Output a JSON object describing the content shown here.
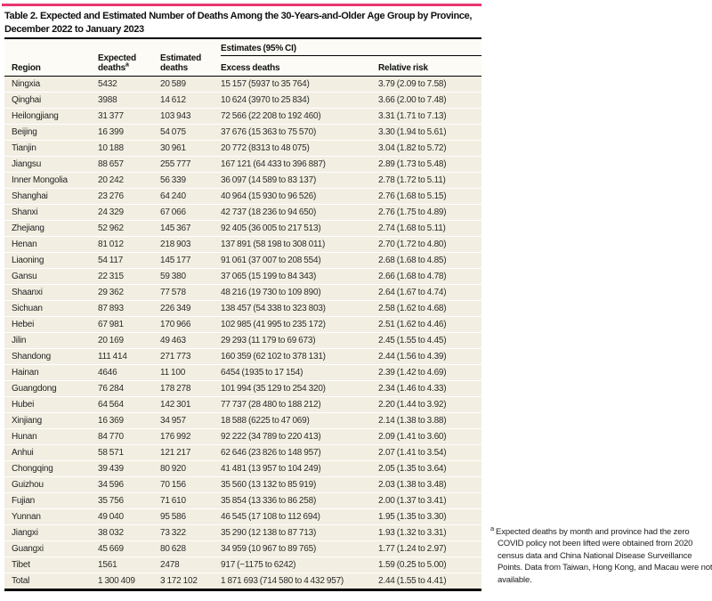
{
  "accent_color": "#e8366e",
  "title": "Table 2. Expected and Estimated Number of Deaths Among the 30-Years-and-Older Age Group by Province, December 2022 to January 2023",
  "table": {
    "spanner": "Estimates (95% CI)",
    "columns": {
      "region": "Region",
      "expected_line1": "Expected",
      "expected_line2": "deaths",
      "expected_sup": "a",
      "estimated_line1": "Estimated",
      "estimated_line2": "deaths",
      "excess": "Excess deaths",
      "relative": "Relative risk"
    },
    "rows": [
      [
        "Ningxia",
        "5432",
        "20 589",
        "15 157 (5937 to 35 764)",
        "3.79 (2.09 to 7.58)"
      ],
      [
        "Qinghai",
        "3988",
        "14 612",
        "10 624 (3970 to 25 834)",
        "3.66 (2.00 to 7.48)"
      ],
      [
        "Heilongjiang",
        "31 377",
        "103 943",
        "72 566 (22 208 to 192 460)",
        "3.31 (1.71 to 7.13)"
      ],
      [
        "Beijing",
        "16 399",
        "54 075",
        "37 676 (15 363 to 75 570)",
        "3.30 (1.94 to 5.61)"
      ],
      [
        "Tianjin",
        "10 188",
        "30 961",
        "20 772 (8313 to 48 075)",
        "3.04 (1.82 to 5.72)"
      ],
      [
        "Jiangsu",
        "88 657",
        "255 777",
        "167 121 (64 433 to 396 887)",
        "2.89 (1.73 to 5.48)"
      ],
      [
        "Inner Mongolia",
        "20 242",
        "56 339",
        "36 097 (14 589 to 83 137)",
        "2.78 (1.72 to 5.11)"
      ],
      [
        "Shanghai",
        "23 276",
        "64 240",
        "40 964 (15 930 to 96 526)",
        "2.76 (1.68 to 5.15)"
      ],
      [
        "Shanxi",
        "24 329",
        "67 066",
        "42 737 (18 236 to 94 650)",
        "2.76 (1.75 to 4.89)"
      ],
      [
        "Zhejiang",
        "52 962",
        "145 367",
        "92 405 (36 005 to 217 513)",
        "2.74 (1.68 to 5.11)"
      ],
      [
        "Henan",
        "81 012",
        "218 903",
        "137 891 (58 198 to 308 011)",
        "2.70 (1.72 to 4.80)"
      ],
      [
        "Liaoning",
        "54 117",
        "145 177",
        "91 061 (37 007 to 208 554)",
        "2.68 (1.68 to 4.85)"
      ],
      [
        "Gansu",
        "22 315",
        "59 380",
        "37 065 (15 199 to 84 343)",
        "2.66 (1.68 to 4.78)"
      ],
      [
        "Shaanxi",
        "29 362",
        "77 578",
        "48 216 (19 730 to 109 890)",
        "2.64 (1.67 to 4.74)"
      ],
      [
        "Sichuan",
        "87 893",
        "226 349",
        "138 457 (54 338 to 323 803)",
        "2.58 (1.62 to 4.68)"
      ],
      [
        "Hebei",
        "67 981",
        "170 966",
        "102 985 (41 995 to 235 172)",
        "2.51 (1.62 to 4.46)"
      ],
      [
        "Jilin",
        "20 169",
        "49 463",
        "29 293 (11 179 to 69 673)",
        "2.45 (1.55 to 4.45)"
      ],
      [
        "Shandong",
        "111 414",
        "271 773",
        "160 359 (62 102 to 378 131)",
        "2.44 (1.56 to 4.39)"
      ],
      [
        "Hainan",
        "4646",
        "11 100",
        "6454 (1935 to 17 154)",
        "2.39 (1.42 to 4.69)"
      ],
      [
        "Guangdong",
        "76 284",
        "178 278",
        "101 994 (35 129 to 254 320)",
        "2.34 (1.46 to 4.33)"
      ],
      [
        "Hubei",
        "64 564",
        "142 301",
        "77 737 (28 480 to 188 212)",
        "2.20 (1.44 to 3.92)"
      ],
      [
        "Xinjiang",
        "16 369",
        "34 957",
        "18 588 (6225 to 47 069)",
        "2.14 (1.38 to 3.88)"
      ],
      [
        "Hunan",
        "84 770",
        "176 992",
        "92 222 (34 789 to 220 413)",
        "2.09 (1.41 to 3.60)"
      ],
      [
        "Anhui",
        "58 571",
        "121 217",
        "62 646 (23 826 to 148 957)",
        "2.07 (1.41 to 3.54)"
      ],
      [
        "Chongqing",
        "39 439",
        "80 920",
        "41 481 (13 957 to 104 249)",
        "2.05 (1.35 to 3.64)"
      ],
      [
        "Guizhou",
        "34 596",
        "70 156",
        "35 560 (13 132 to 85 919)",
        "2.03 (1.38 to 3.48)"
      ],
      [
        "Fujian",
        "35 756",
        "71 610",
        "35 854 (13 336 to 86 258)",
        "2.00 (1.37 to 3.41)"
      ],
      [
        "Yunnan",
        "49 040",
        "95 586",
        "46 545 (17 108 to 112 694)",
        "1.95 (1.35 to 3.30)"
      ],
      [
        "Jiangxi",
        "38 032",
        "73 322",
        "35 290 (12 138 to 87 713)",
        "1.93 (1.32 to 3.31)"
      ],
      [
        "Guangxi",
        "45 669",
        "80 628",
        "34 959 (10 967 to 89 765)",
        "1.77 (1.24 to 2.97)"
      ],
      [
        "Tibet",
        "1561",
        "2478",
        "917 (−1175 to 6242)",
        "1.59 (0.25 to 5.00)"
      ],
      [
        "Total",
        "1 300 409",
        "3 172 102",
        "1 871 693 (714 580 to 4 432 957)",
        "2.44 (1.55 to 4.41)"
      ]
    ]
  },
  "footnote": {
    "marker": "a",
    "text": "Expected deaths by month and province had the zero COVID policy not been lifted were obtained from 2020 census data and China National Disease Surveillance Points. Data from Taiwan, Hong Kong, and Macau were not available."
  }
}
